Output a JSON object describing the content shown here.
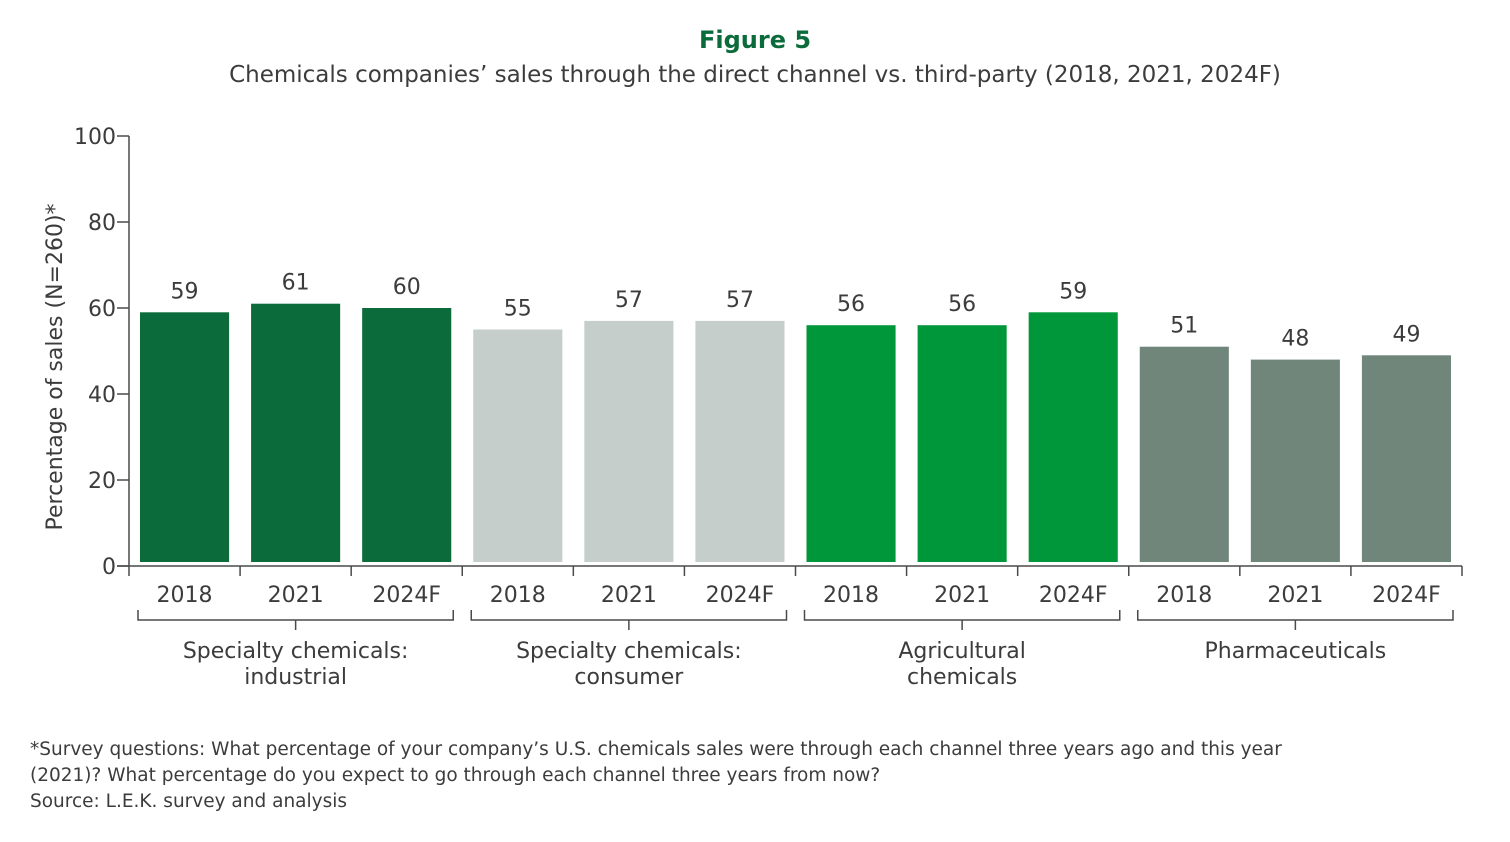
{
  "figure_label": "Figure 5",
  "footnote_lines": [
    "*Survey questions: What percentage of your company’s U.S. chemicals sales were through each channel three years ago and this year",
    "(2021)? What percentage do you expect to go through each channel three years from now?"
  ],
  "source": "Source: L.E.K. survey and analysis",
  "chart_data": {
    "type": "bar",
    "title": "Chemicals companies’ sales through the direct channel vs. third-party (2018, 2021, 2024F)",
    "ylabel": "Percentage of sales (N=260)*",
    "xlabel": "",
    "ylim": [
      0,
      100
    ],
    "yticks": [
      0,
      20,
      40,
      60,
      80,
      100
    ],
    "grid": false,
    "groups": [
      {
        "name": "Specialty chemicals: industrial",
        "label_lines": [
          "Specialty chemicals:",
          "industrial"
        ],
        "color": "#0b6b3a",
        "categories": [
          "2018",
          "2021",
          "2024F"
        ],
        "values": [
          59,
          61,
          60
        ]
      },
      {
        "name": "Specialty chemicals: consumer",
        "label_lines": [
          "Specialty chemicals:",
          "consumer"
        ],
        "color": "#c5cecb",
        "categories": [
          "2018",
          "2021",
          "2024F"
        ],
        "values": [
          55,
          57,
          57
        ]
      },
      {
        "name": "Agricultural chemicals",
        "label_lines": [
          "Agricultural",
          "chemicals"
        ],
        "color": "#00963a",
        "categories": [
          "2018",
          "2021",
          "2024F"
        ],
        "values": [
          56,
          56,
          59
        ]
      },
      {
        "name": "Pharmaceuticals",
        "label_lines": [
          "Pharmaceuticals"
        ],
        "color": "#71867b",
        "categories": [
          "2018",
          "2021",
          "2024F"
        ],
        "values": [
          51,
          48,
          49
        ]
      }
    ]
  }
}
